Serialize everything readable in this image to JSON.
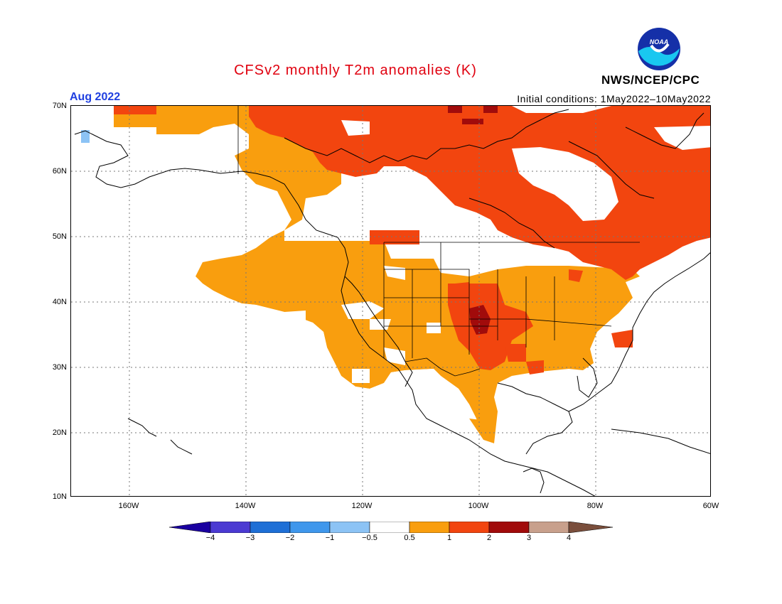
{
  "header": {
    "title": "CFSv2 monthly T2m anomalies (K)",
    "period": "Aug 2022",
    "initial_conditions": "Initial conditions: 1May2022–10May2022",
    "organization": "NWS/NCEP/CPC",
    "logo_text": "NOAA"
  },
  "map": {
    "lat_labels": [
      "70N",
      "60N",
      "50N",
      "40N",
      "30N",
      "20N",
      "10N"
    ],
    "lon_labels": [
      "160W",
      "140W",
      "120W",
      "100W",
      "80W",
      "60W"
    ],
    "region": "North America",
    "colors": {
      "below_minus_4": "#1a00a0",
      "minus_4_to_3": "#4b3ad2",
      "minus_3_to_2": "#1e6fd6",
      "minus_2_to_1": "#3f97ec",
      "minus_1_to_05": "#8cc3f5",
      "neutral": "#ffffff",
      "plus_05_to_1": "#f99e0e",
      "plus_1_to_2": "#f2450f",
      "plus_2_to_3": "#a10b0b",
      "plus_3_to_4": "#c8a08c",
      "above_4": "#7a4e3c"
    }
  },
  "colorbar": {
    "labels": [
      "−4",
      "−3",
      "−2",
      "−1",
      "−0.5",
      "0.5",
      "1",
      "2",
      "3",
      "4"
    ]
  }
}
